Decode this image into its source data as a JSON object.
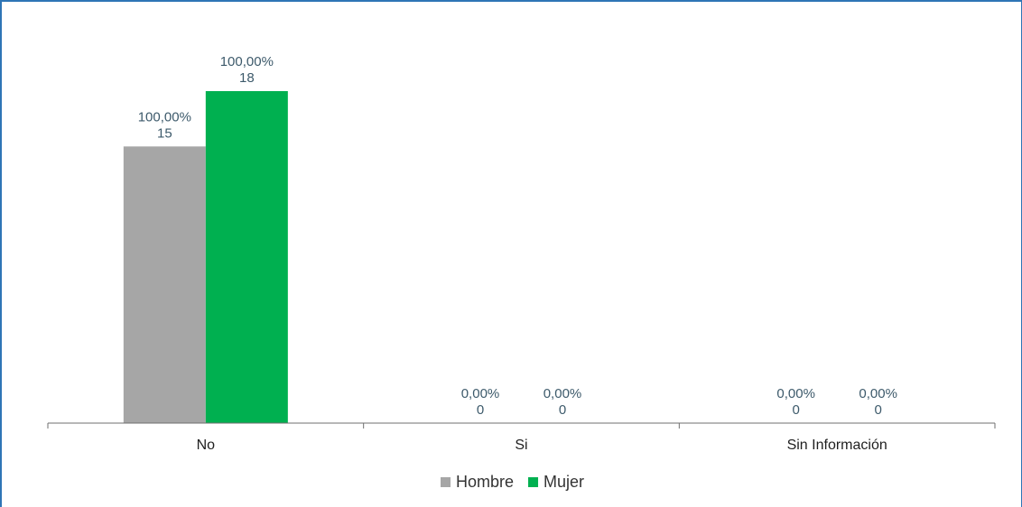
{
  "chart_data": {
    "type": "bar",
    "categories": [
      "No",
      "Si",
      "Sin Información"
    ],
    "series": [
      {
        "name": "Hombre",
        "color": "#a6a6a6",
        "values": [
          15,
          0,
          0
        ],
        "percent_labels": [
          "100,00%",
          "0,00%",
          "0,00%"
        ]
      },
      {
        "name": "Mujer",
        "color": "#00b050",
        "values": [
          18,
          0,
          0
        ],
        "percent_labels": [
          "100,00%",
          "0,00%",
          "0,00%"
        ]
      }
    ],
    "ylim": [
      0,
      18
    ],
    "grid": false,
    "legend": "bottom"
  }
}
